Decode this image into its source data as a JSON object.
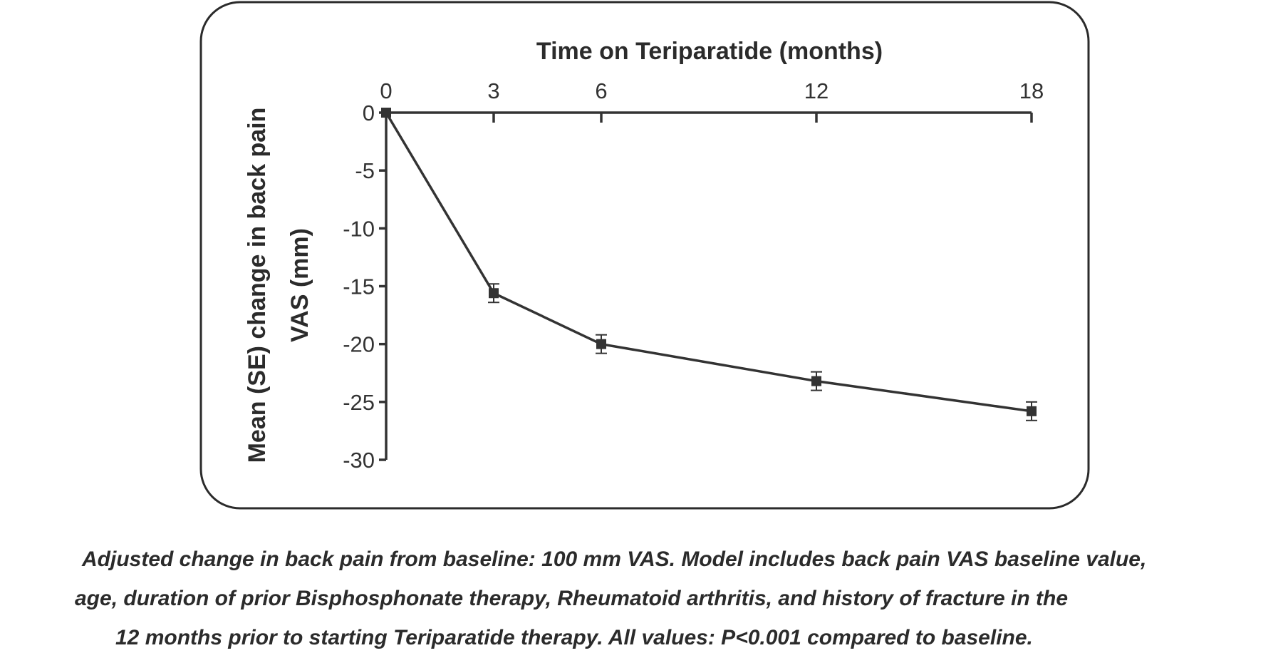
{
  "chart_data": {
    "type": "line",
    "xlabel": "Time on Teriparatide (months)",
    "ylabel_lines": [
      "Mean (SE) change in back pain",
      "VAS (mm)"
    ],
    "x": [
      0,
      3,
      6,
      12,
      18
    ],
    "values": [
      0,
      -15.6,
      -20.0,
      -23.2,
      -25.8
    ],
    "errors": [
      0,
      0.8,
      0.8,
      0.8,
      0.8
    ],
    "x_ticks": [
      "0",
      "3",
      "6",
      "12",
      "18"
    ],
    "y_ticks": [
      "0",
      "-5",
      "-10",
      "-15",
      "-20",
      "-25",
      "-30"
    ],
    "xlim": [
      0,
      18
    ],
    "ylim": [
      -30,
      0
    ],
    "x_axis_position": "top",
    "grid": false,
    "marker": "square",
    "color": "#333333"
  },
  "caption": [
    "Adjusted change in back pain from baseline: 100 mm VAS. Model includes back pain VAS baseline value,",
    "age, duration of prior Bisphosphonate therapy, Rheumatoid arthritis, and history of fracture in the",
    "12 months prior to starting Teriparatide therapy.  All values: P<0.001 compared to baseline."
  ]
}
